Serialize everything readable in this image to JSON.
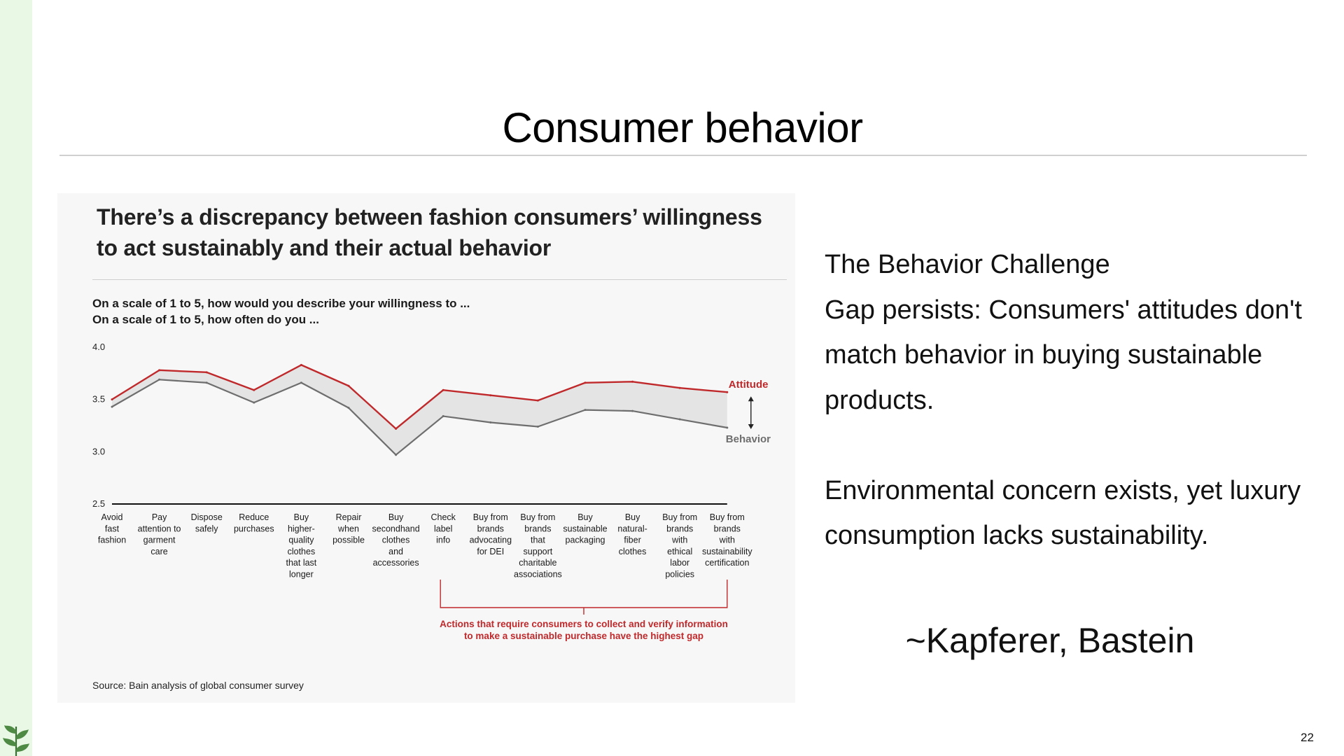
{
  "slide": {
    "title": "Consumer behavior",
    "page_number": "22"
  },
  "right_panel": {
    "heading": "The Behavior Challenge",
    "paragraph1": "Gap persists: Consumers' attitudes don't match behavior in buying sustainable products.",
    "paragraph2": "Environmental concern exists, yet luxury consumption lacks sustainability.",
    "attribution": "~Kapferer, Bastein"
  },
  "chart_data": {
    "type": "line",
    "title": "There’s a discrepancy between fashion consumers’ willingness to act sustainably and their actual behavior",
    "question1": "On a scale of 1 to 5, how would you describe your willingness to ...",
    "question2": "On a scale of 1 to 5, how often do you ...",
    "ylim": [
      2.5,
      4.0
    ],
    "yticks": [
      "4.0",
      "3.5",
      "3.0",
      "2.5"
    ],
    "categories": [
      [
        "Avoid",
        "fast",
        "fashion"
      ],
      [
        "Pay",
        "attention to",
        "garment",
        "care"
      ],
      [
        "Dispose",
        "safely"
      ],
      [
        "Reduce",
        "purchases"
      ],
      [
        "Buy",
        "higher-",
        "quality",
        "clothes",
        "that last",
        "longer"
      ],
      [
        "Repair",
        "when",
        "possible"
      ],
      [
        "Buy",
        "secondhand",
        "clothes",
        "and",
        "accessories"
      ],
      [
        "Check",
        "label",
        "info"
      ],
      [
        "Buy from",
        "brands",
        "advocating",
        "for DEI"
      ],
      [
        "Buy from",
        "brands",
        "that",
        "support",
        "charitable",
        "associations"
      ],
      [
        "Buy",
        "sustainable",
        "packaging"
      ],
      [
        "Buy",
        "natural-",
        "fiber",
        "clothes"
      ],
      [
        "Buy from",
        "brands",
        "with",
        "ethical",
        "labor",
        "policies"
      ],
      [
        "Buy from",
        "brands",
        "with",
        "sustainability",
        "certification"
      ]
    ],
    "series": [
      {
        "name": "Attitude",
        "color": "#c0292b",
        "values": [
          3.5,
          3.78,
          3.76,
          3.59,
          3.83,
          3.63,
          3.22,
          3.59,
          3.54,
          3.49,
          3.66,
          3.67,
          3.61,
          3.57
        ]
      },
      {
        "name": "Behavior",
        "color": "#6e6e6e",
        "values": [
          3.43,
          3.69,
          3.66,
          3.47,
          3.66,
          3.42,
          2.97,
          3.34,
          3.28,
          3.24,
          3.4,
          3.39,
          3.31,
          3.23
        ]
      }
    ],
    "gap_fill_color": "#e4e4e4",
    "annotation": "Actions that require consumers to collect and verify information to make a sustainable purchase have the highest gap",
    "annotation_color": "#c0292b",
    "bracket_range": [
      7,
      13
    ],
    "source": "Source: Bain analysis of global consumer survey"
  }
}
